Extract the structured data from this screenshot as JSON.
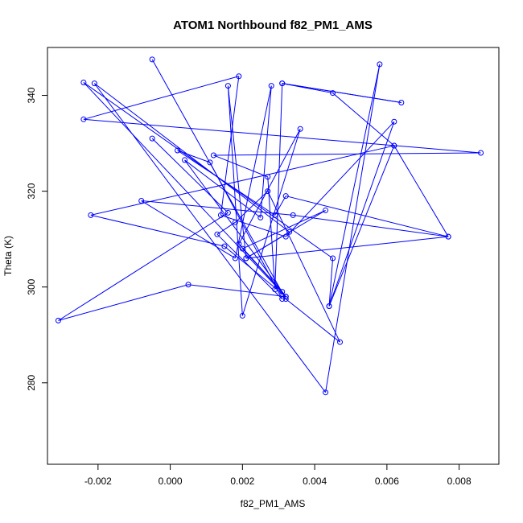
{
  "chart_data": {
    "type": "line",
    "title": "ATOM1 Northbound f82_PM1_AMS",
    "xlabel": "f82_PM1_AMS",
    "ylabel": "Theta (K)",
    "xlim": [
      -0.0034,
      0.0091
    ],
    "ylim": [
      263,
      350
    ],
    "x_ticks": [
      -0.002,
      0.0,
      0.002,
      0.004,
      0.006,
      0.008
    ],
    "x_tick_labels": [
      "-0.002",
      "0.000",
      "0.002",
      "0.004",
      "0.006",
      "0.008"
    ],
    "y_ticks": [
      280,
      300,
      320,
      340
    ],
    "y_tick_labels": [
      "280",
      "300",
      "320",
      "340"
    ],
    "grid": false,
    "series_color": "#0000ff",
    "marker": "open-circle",
    "points": [
      {
        "x": -0.0005,
        "y": 347.5
      },
      {
        "x": 0.0032,
        "y": 297.5
      },
      {
        "x": 0.0047,
        "y": 288.5
      },
      {
        "x": 0.0027,
        "y": 320.0
      },
      {
        "x": 0.0018,
        "y": 313.5
      },
      {
        "x": 0.0013,
        "y": 311.0
      },
      {
        "x": 0.0031,
        "y": 297.5
      },
      {
        "x": 0.0011,
        "y": 326.0
      },
      {
        "x": 0.0002,
        "y": 328.5
      },
      {
        "x": 0.0029,
        "y": 315.0
      },
      {
        "x": 0.0032,
        "y": 319.0
      },
      {
        "x": 0.0077,
        "y": 310.5
      },
      {
        "x": 0.0021,
        "y": 306.0
      },
      {
        "x": 0.0016,
        "y": 342.0
      },
      {
        "x": 0.002,
        "y": 294.0
      },
      {
        "x": 0.0036,
        "y": 333.0
      },
      {
        "x": 0.0019,
        "y": 309.0
      },
      {
        "x": 0.0031,
        "y": 299.0
      },
      {
        "x": 0.002,
        "y": 308.0
      },
      {
        "x": 0.0043,
        "y": 316.0
      },
      {
        "x": 0.0021,
        "y": 306.0
      },
      {
        "x": 0.0033,
        "y": 311.5
      },
      {
        "x": -0.0021,
        "y": 342.5
      },
      {
        "x": 0.0043,
        "y": 278.0
      },
      {
        "x": 0.0058,
        "y": 346.5
      },
      {
        "x": 0.0044,
        "y": 296.0
      },
      {
        "x": 0.0045,
        "y": 306.0
      },
      {
        "x": -0.0024,
        "y": 342.7
      },
      {
        "x": 0.0032,
        "y": 298.0
      },
      {
        "x": 0.0004,
        "y": 326.5
      },
      {
        "x": 0.0025,
        "y": 314.5
      },
      {
        "x": 0.0028,
        "y": 342.0
      },
      {
        "x": 0.0018,
        "y": 306.0
      },
      {
        "x": -0.0008,
        "y": 318.0
      },
      {
        "x": 0.0034,
        "y": 315.0
      },
      {
        "x": 0.0077,
        "y": 310.5
      },
      {
        "x": 0.0062,
        "y": 329.5
      },
      {
        "x": 0.0044,
        "y": 296.0
      },
      {
        "x": 0.0062,
        "y": 334.5
      },
      {
        "x": 0.0032,
        "y": 310.5
      },
      {
        "x": 0.0014,
        "y": 315.0
      },
      {
        "x": 0.0019,
        "y": 344.0
      },
      {
        "x": -0.0024,
        "y": 335.0
      },
      {
        "x": 0.0086,
        "y": 328.0
      },
      {
        "x": 0.0012,
        "y": 327.5
      },
      {
        "x": 0.0027,
        "y": 323.0
      },
      {
        "x": 0.0029,
        "y": 299.5
      },
      {
        "x": 0.0031,
        "y": 342.5
      },
      {
        "x": 0.0064,
        "y": 338.5
      },
      {
        "x": 0.0031,
        "y": 342.5
      },
      {
        "x": 0.0045,
        "y": 340.5
      },
      {
        "x": 0.0062,
        "y": 329.5
      },
      {
        "x": -0.0022,
        "y": 315.0
      },
      {
        "x": 0.0015,
        "y": 308.5
      },
      {
        "x": 0.0032,
        "y": 298.0
      },
      {
        "x": 0.0005,
        "y": 300.5
      },
      {
        "x": -0.0031,
        "y": 293.0
      },
      {
        "x": 0.0016,
        "y": 315.5
      },
      {
        "x": -0.0005,
        "y": 331.0
      }
    ]
  }
}
